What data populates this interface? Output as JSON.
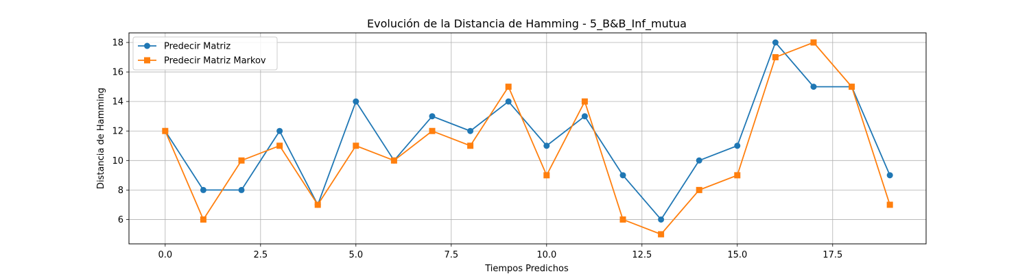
{
  "chart_data": {
    "type": "line",
    "title": "Evolución de la Distancia de Hamming - 5_B&B_Inf_mutua",
    "xlabel": "Tiempos Predichos",
    "ylabel": "Distancia de Hamming",
    "xlim": [
      -0.95,
      19.95
    ],
    "ylim": [
      4.35,
      18.65
    ],
    "xticks": [
      0.0,
      2.5,
      5.0,
      7.5,
      10.0,
      12.5,
      15.0,
      17.5
    ],
    "xtick_labels": [
      "0.0",
      "2.5",
      "5.0",
      "7.5",
      "10.0",
      "12.5",
      "15.0",
      "17.5"
    ],
    "yticks": [
      6,
      8,
      10,
      12,
      14,
      16,
      18
    ],
    "ytick_labels": [
      "6",
      "8",
      "10",
      "12",
      "14",
      "16",
      "18"
    ],
    "grid": true,
    "legend_position": "top-left",
    "x": [
      0,
      1,
      2,
      3,
      4,
      5,
      6,
      7,
      8,
      9,
      10,
      11,
      12,
      13,
      14,
      15,
      16,
      17,
      18,
      19
    ],
    "series": [
      {
        "name": "Predecir Matriz",
        "color": "#1f77b4",
        "marker": "circle",
        "values": [
          12,
          8,
          8,
          12,
          7,
          14,
          10,
          13,
          12,
          14,
          11,
          13,
          9,
          6,
          10,
          11,
          18,
          15,
          15,
          9
        ]
      },
      {
        "name": "Predecir Matriz Markov",
        "color": "#ff7f0e",
        "marker": "square",
        "values": [
          12,
          6,
          10,
          11,
          7,
          11,
          10,
          12,
          11,
          15,
          9,
          14,
          6,
          5,
          8,
          9,
          17,
          18,
          15,
          7
        ]
      }
    ]
  }
}
